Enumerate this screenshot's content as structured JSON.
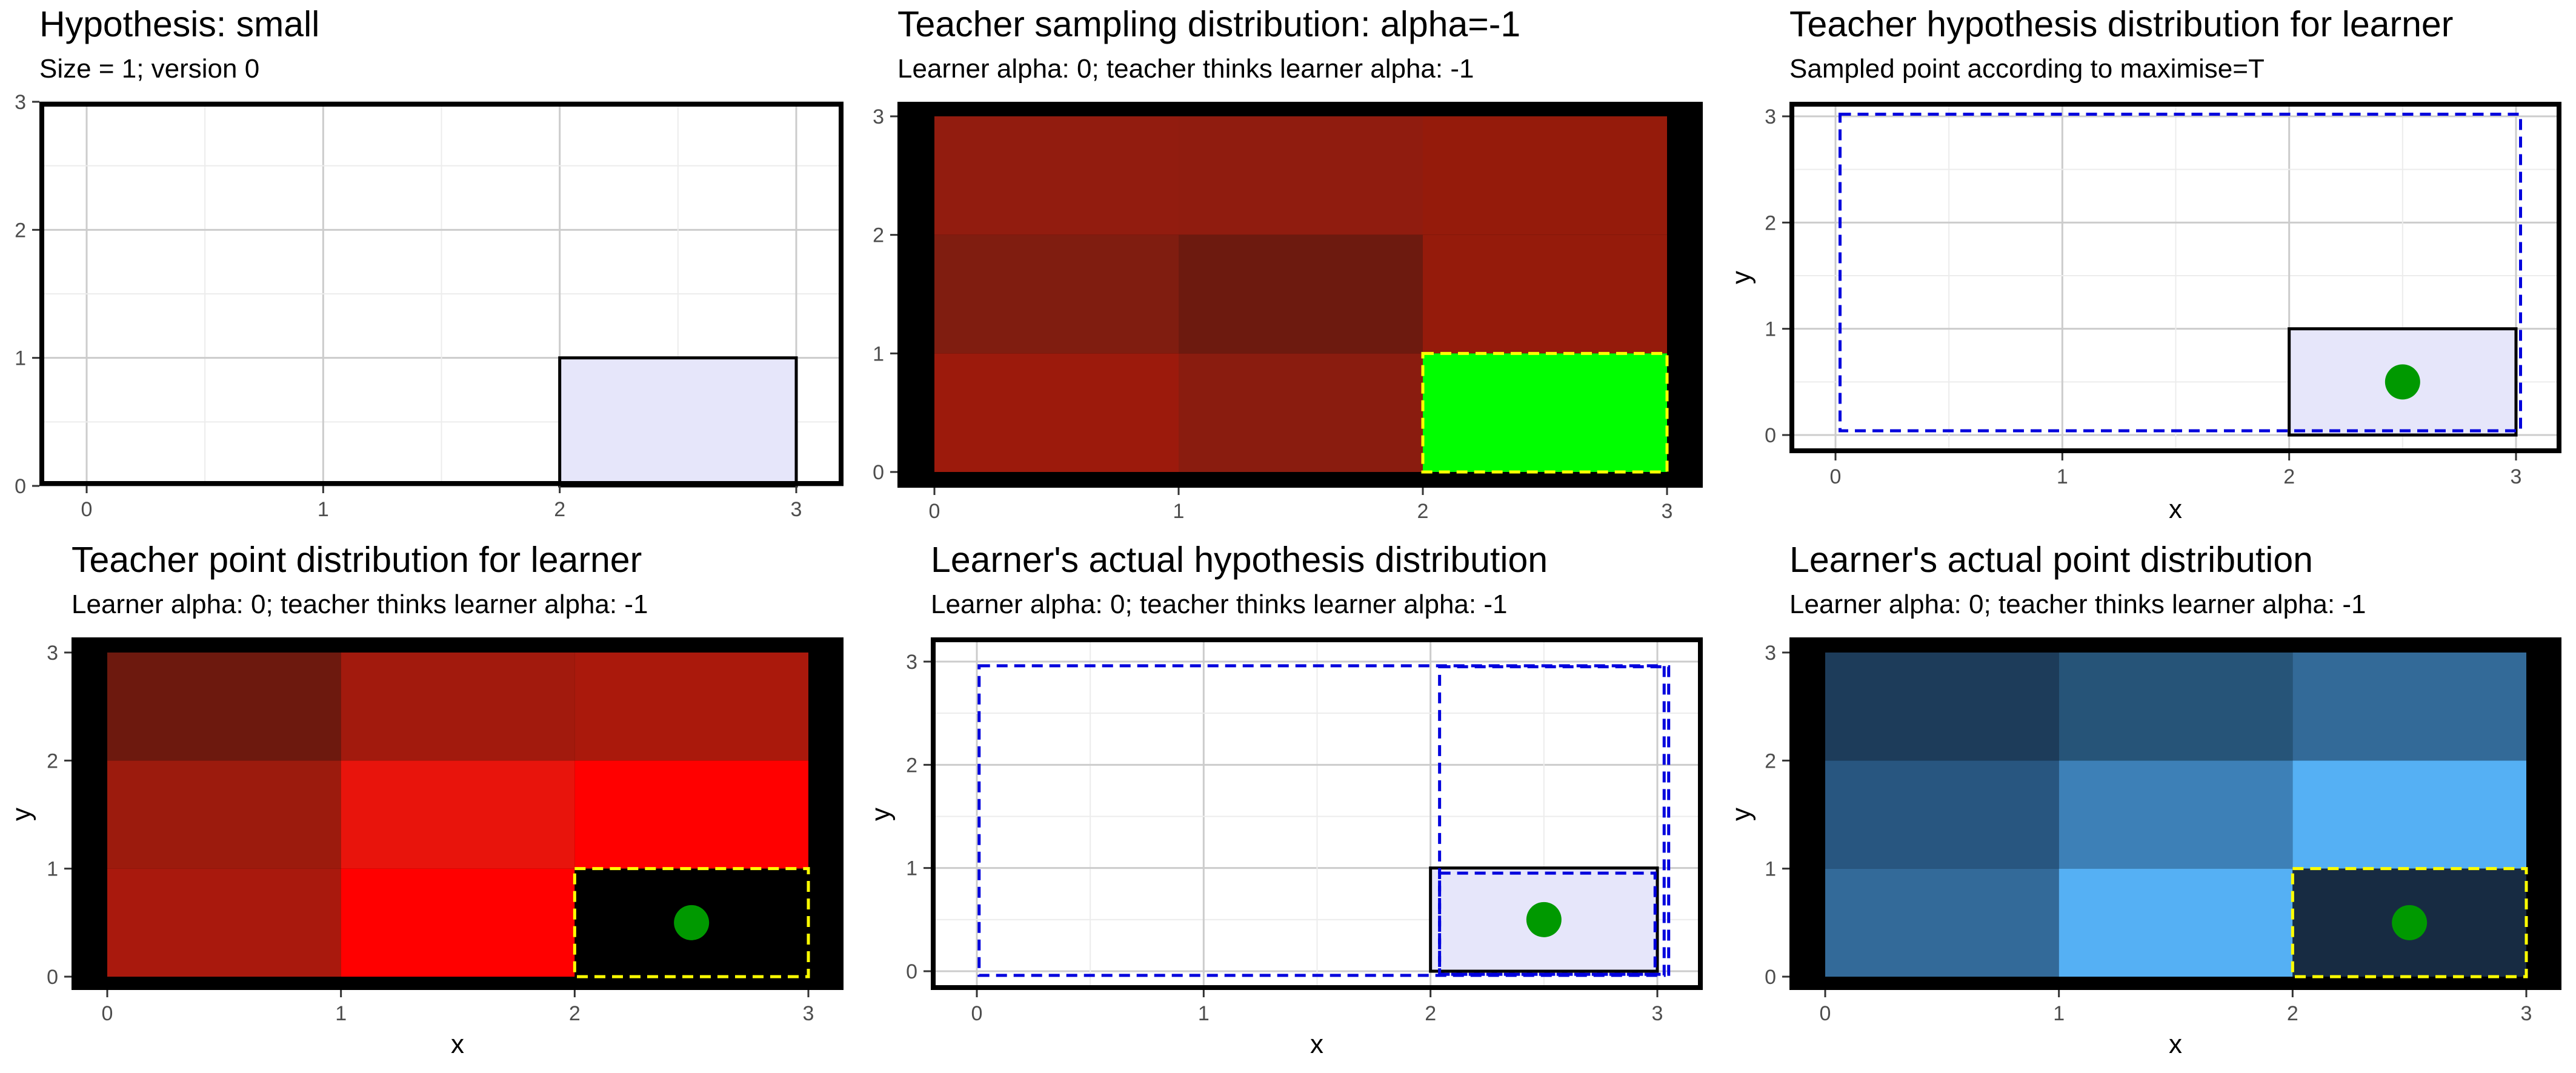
{
  "chart_data": [
    {
      "type": "heatmap",
      "title": "Hypothesis: small",
      "subtitle": "Size = 1; version 0",
      "xlabel": "",
      "ylabel": "",
      "xlim": [
        0,
        3
      ],
      "ylim": [
        0,
        3
      ],
      "xticks": [
        "0",
        "1",
        "2",
        "3"
      ],
      "yticks": [
        "0",
        "1",
        "2",
        "3"
      ],
      "background": "#ffffff",
      "border_color": "#000000",
      "grid": true,
      "cells": [],
      "rects": [
        {
          "x0": 2,
          "y0": 0,
          "x1": 3,
          "y1": 1,
          "fill": "#e6e6fa",
          "stroke": "#000000",
          "dash": false
        }
      ],
      "points": []
    },
    {
      "type": "heatmap",
      "title": "Teacher sampling distribution: alpha=-1",
      "subtitle": "Learner alpha: 0; teacher thinks learner alpha: -1",
      "xlabel": "",
      "ylabel": "",
      "xlim": [
        0,
        3
      ],
      "ylim": [
        0,
        3
      ],
      "xticks": [
        "0",
        "1",
        "2",
        "3"
      ],
      "yticks": [
        "0",
        "1",
        "2",
        "3"
      ],
      "background": "#000000",
      "border_color": "#000000",
      "grid": false,
      "cells": [
        {
          "x": 0,
          "y": 2,
          "fill": "#921c0f"
        },
        {
          "x": 1,
          "y": 2,
          "fill": "#901c0f"
        },
        {
          "x": 2,
          "y": 2,
          "fill": "#951b0b"
        },
        {
          "x": 0,
          "y": 1,
          "fill": "#801d10"
        },
        {
          "x": 1,
          "y": 1,
          "fill": "#6d1a0f"
        },
        {
          "x": 2,
          "y": 1,
          "fill": "#951b0b"
        },
        {
          "x": 0,
          "y": 0,
          "fill": "#9c1a0c"
        },
        {
          "x": 1,
          "y": 0,
          "fill": "#8a1c0f"
        },
        {
          "x": 2,
          "y": 0,
          "fill": "#00ff00"
        }
      ],
      "rects": [
        {
          "x0": 2,
          "y0": 0,
          "x1": 3,
          "y1": 1,
          "fill": "none",
          "stroke": "#ffff00",
          "dash": true
        }
      ],
      "points": []
    },
    {
      "type": "heatmap",
      "title": "Teacher hypothesis distribution for learner",
      "subtitle": "Sampled point according to maximise=T",
      "xlabel": "x",
      "ylabel": "y",
      "xlim": [
        0,
        3
      ],
      "ylim": [
        0,
        3
      ],
      "xticks": [
        "0",
        "1",
        "2",
        "3"
      ],
      "yticks": [
        "0",
        "1",
        "2",
        "3"
      ],
      "background": "#ffffff",
      "border_color": "#000000",
      "grid": true,
      "cells": [],
      "rects": [
        {
          "x0": 2,
          "y0": 0,
          "x1": 3,
          "y1": 1,
          "fill": "#e6e6fa",
          "stroke": "#000000",
          "dash": false
        },
        {
          "x0": 0.02,
          "y0": 0.04,
          "x1": 3.02,
          "y1": 3.02,
          "fill": "none",
          "stroke": "#0000dd",
          "dash": true
        }
      ],
      "points": [
        {
          "x": 2.5,
          "y": 0.5,
          "color": "#009900"
        }
      ]
    },
    {
      "type": "heatmap",
      "title": "Teacher point distribution for learner",
      "subtitle": "Learner alpha: 0; teacher thinks learner alpha: -1",
      "xlabel": "x",
      "ylabel": "y",
      "xlim": [
        0,
        3
      ],
      "ylim": [
        0,
        3
      ],
      "xticks": [
        "0",
        "1",
        "2",
        "3"
      ],
      "yticks": [
        "0",
        "1",
        "2",
        "3"
      ],
      "background": "#000000",
      "border_color": "#000000",
      "grid": false,
      "cells": [
        {
          "x": 0,
          "y": 2,
          "fill": "#6d190e"
        },
        {
          "x": 1,
          "y": 2,
          "fill": "#a21a0d"
        },
        {
          "x": 2,
          "y": 2,
          "fill": "#aa190c"
        },
        {
          "x": 0,
          "y": 1,
          "fill": "#9c1b0d"
        },
        {
          "x": 1,
          "y": 1,
          "fill": "#e8140c"
        },
        {
          "x": 2,
          "y": 1,
          "fill": "#ff0000"
        },
        {
          "x": 0,
          "y": 0,
          "fill": "#a9190d"
        },
        {
          "x": 1,
          "y": 0,
          "fill": "#ff0000"
        },
        {
          "x": 2,
          "y": 0,
          "fill": "#000000"
        }
      ],
      "rects": [
        {
          "x0": 2,
          "y0": 0,
          "x1": 3,
          "y1": 1,
          "fill": "none",
          "stroke": "#ffff00",
          "dash": true
        }
      ],
      "points": [
        {
          "x": 2.5,
          "y": 0.5,
          "color": "#009900"
        }
      ]
    },
    {
      "type": "heatmap",
      "title": "Learner's actual hypothesis distribution",
      "subtitle": "Learner alpha: 0; teacher thinks learner alpha: -1",
      "xlabel": "x",
      "ylabel": "y",
      "xlim": [
        0,
        3
      ],
      "ylim": [
        0,
        3
      ],
      "xticks": [
        "0",
        "1",
        "2",
        "3"
      ],
      "yticks": [
        "0",
        "1",
        "2",
        "3"
      ],
      "background": "#ffffff",
      "border_color": "#000000",
      "grid": true,
      "cells": [],
      "rects": [
        {
          "x0": 2,
          "y0": 0,
          "x1": 3,
          "y1": 1,
          "fill": "#e6e6fa",
          "stroke": "#000000",
          "dash": false
        },
        {
          "x0": 0.01,
          "y0": -0.04,
          "x1": 3.03,
          "y1": 2.96,
          "fill": "none",
          "stroke": "#0000dd",
          "dash": true
        },
        {
          "x0": 2.04,
          "y0": -0.03,
          "x1": 3.05,
          "y1": 2.95,
          "fill": "none",
          "stroke": "#0000dd",
          "dash": true
        },
        {
          "x0": 2.04,
          "y0": -0.03,
          "x1": 2.99,
          "y1": 0.95,
          "fill": "none",
          "stroke": "#0000dd",
          "dash": true
        }
      ],
      "points": [
        {
          "x": 2.5,
          "y": 0.5,
          "color": "#009900"
        }
      ]
    },
    {
      "type": "heatmap",
      "title": "Learner's actual point distribution",
      "subtitle": "Learner alpha: 0; teacher thinks learner alpha: -1",
      "xlabel": "x",
      "ylabel": "y",
      "xlim": [
        0,
        3
      ],
      "ylim": [
        0,
        3
      ],
      "xticks": [
        "0",
        "1",
        "2",
        "3"
      ],
      "yticks": [
        "0",
        "1",
        "2",
        "3"
      ],
      "background": "#000000",
      "border_color": "#000000",
      "grid": false,
      "cells": [
        {
          "x": 0,
          "y": 2,
          "fill": "#1d3c5a"
        },
        {
          "x": 1,
          "y": 2,
          "fill": "#265478"
        },
        {
          "x": 2,
          "y": 2,
          "fill": "#336a98"
        },
        {
          "x": 0,
          "y": 1,
          "fill": "#285680"
        },
        {
          "x": 1,
          "y": 1,
          "fill": "#3d80b7"
        },
        {
          "x": 2,
          "y": 1,
          "fill": "#55b0f4"
        },
        {
          "x": 0,
          "y": 0,
          "fill": "#336a99"
        },
        {
          "x": 1,
          "y": 0,
          "fill": "#55b0f4"
        },
        {
          "x": 2,
          "y": 0,
          "fill": "#172b42"
        }
      ],
      "rects": [
        {
          "x0": 2,
          "y0": 0,
          "x1": 3,
          "y1": 1,
          "fill": "none",
          "stroke": "#ffff00",
          "dash": true
        }
      ],
      "points": [
        {
          "x": 2.5,
          "y": 0.5,
          "color": "#009900"
        }
      ]
    }
  ]
}
